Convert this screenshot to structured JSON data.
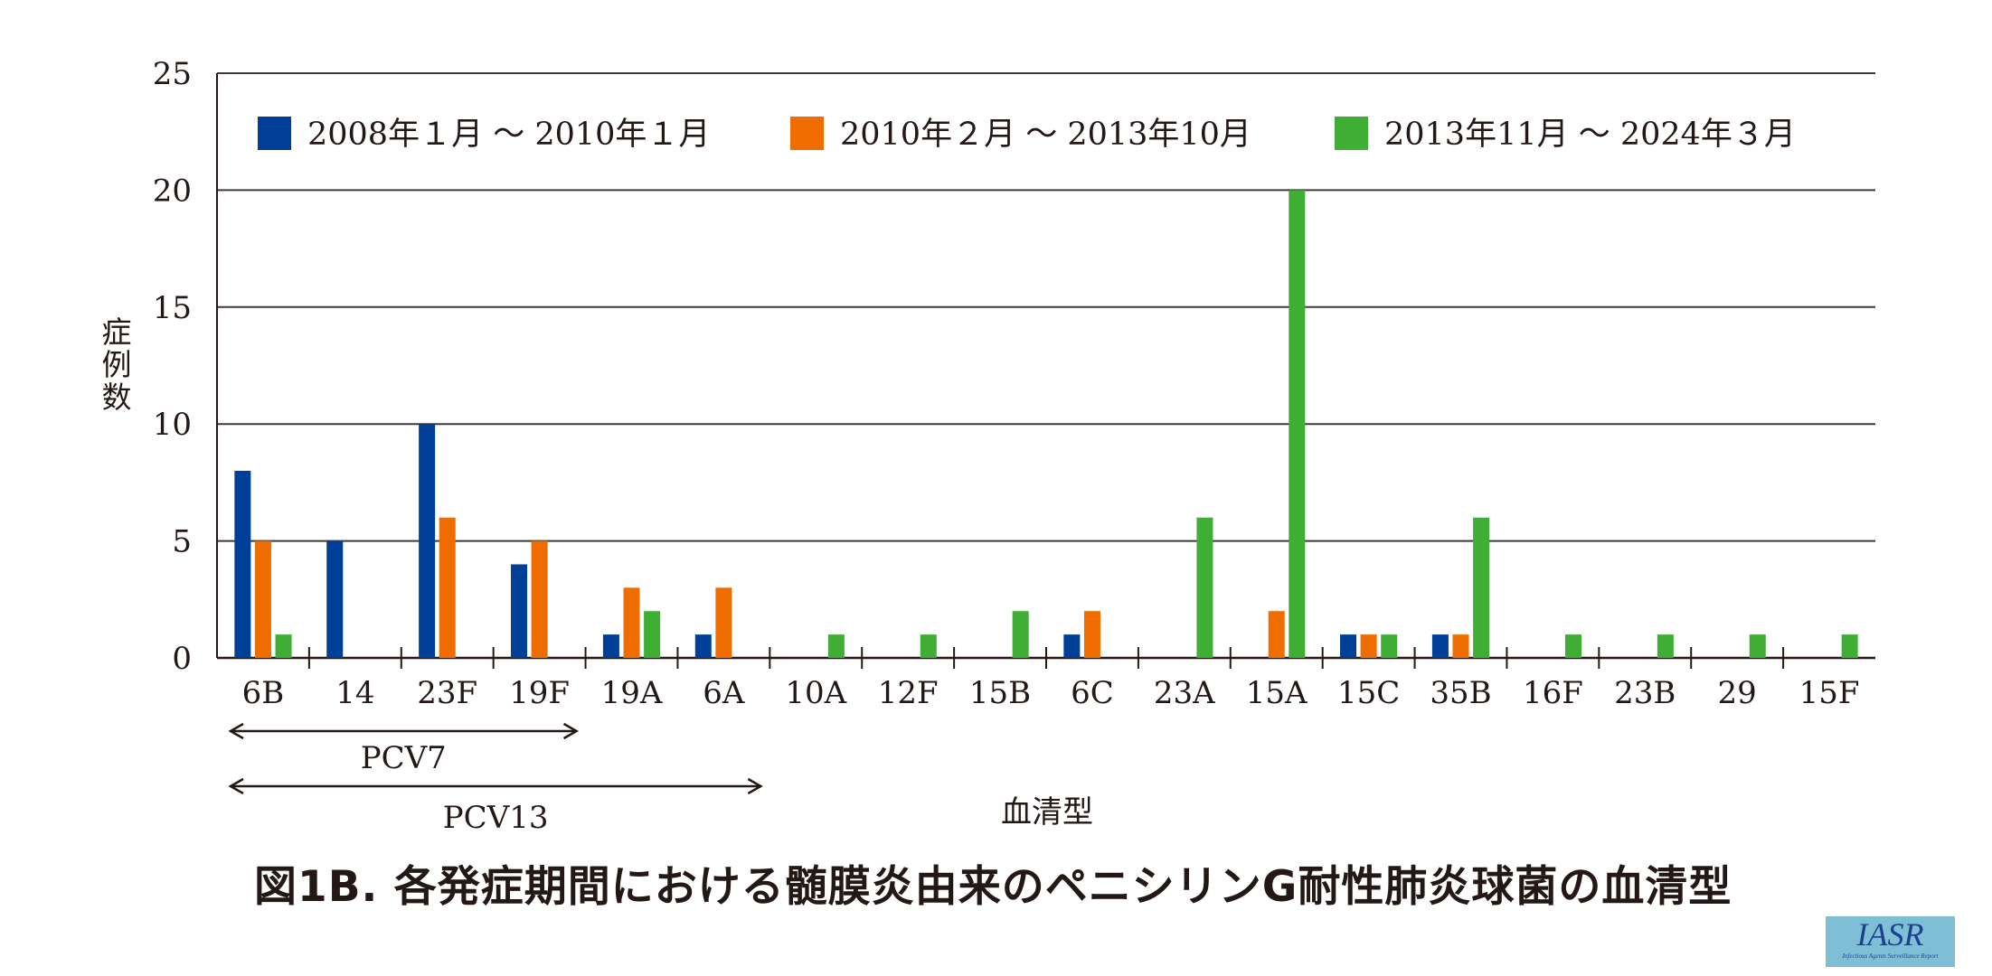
{
  "chart_data": {
    "type": "bar",
    "title": "図1B. 各発症期間における髄膜炎由来のペニシリンG耐性肺炎球菌の血清型",
    "xlabel": "血清型",
    "ylabel": "症例数",
    "ylim": [
      0,
      25
    ],
    "yticks": [
      "0",
      "5",
      "10",
      "15",
      "20",
      "25"
    ],
    "grid": true,
    "legend_position": "top",
    "categories": [
      "6B",
      "14",
      "23F",
      "19F",
      "19A",
      "6A",
      "10A",
      "12F",
      "15B",
      "6C",
      "23A",
      "15A",
      "15C",
      "35B",
      "16F",
      "23B",
      "29",
      "15F"
    ],
    "series": [
      {
        "name": "2008年１月 ～ 2010年１月",
        "color": "#003f98",
        "values": [
          8,
          5,
          10,
          4,
          1,
          1,
          0,
          0,
          0,
          1,
          0,
          0,
          1,
          1,
          0,
          0,
          0,
          0
        ]
      },
      {
        "name": "2010年２月 ～ 2013年10月",
        "color": "#ee6c00",
        "values": [
          5,
          0,
          6,
          5,
          3,
          3,
          0,
          0,
          0,
          2,
          0,
          2,
          1,
          1,
          0,
          0,
          0,
          0
        ]
      },
      {
        "name": "2013年11月 ～ 2024年３月",
        "color": "#3fae35",
        "values": [
          1,
          0,
          0,
          0,
          2,
          0,
          1,
          1,
          2,
          0,
          6,
          20,
          1,
          6,
          1,
          1,
          1,
          1
        ]
      }
    ],
    "annotations": [
      {
        "label": "PCV7",
        "from": "6B",
        "to": "19F"
      },
      {
        "label": "PCV13",
        "from": "6B",
        "to": "6A"
      }
    ]
  },
  "logo": {
    "text": "IASR",
    "subtext": "Infectious Agents Surveillance Report"
  }
}
